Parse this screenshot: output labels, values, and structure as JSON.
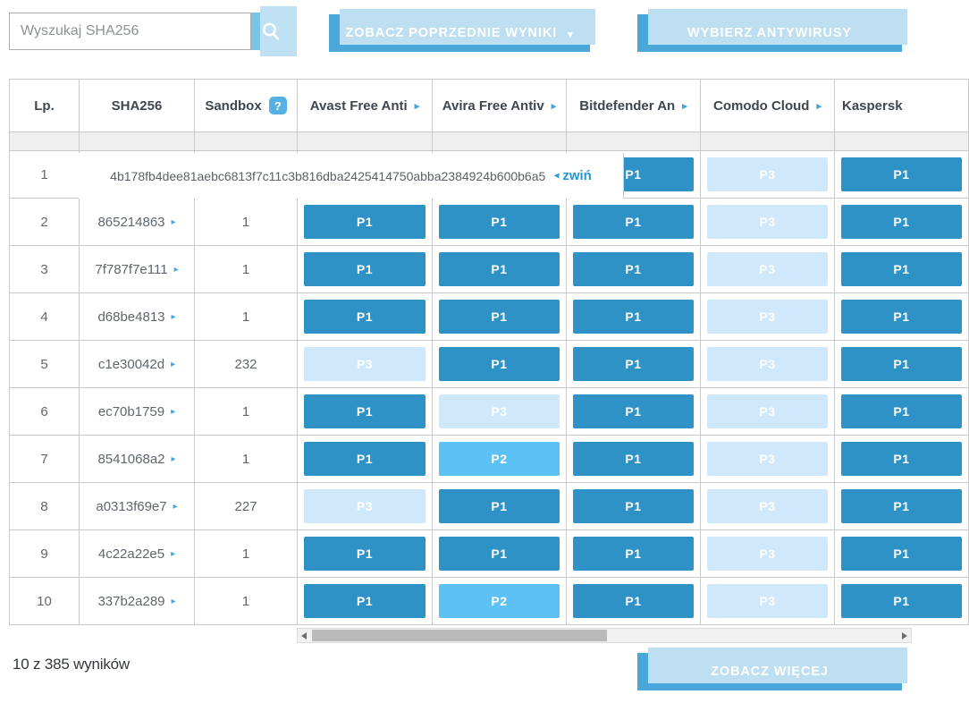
{
  "search": {
    "placeholder": "Wyszukaj SHA256"
  },
  "toolbar": {
    "previous_results": {
      "label": "ZOBACZ POPRZEDNIE WYNIKI",
      "caret": "▾"
    },
    "choose_antivirus": {
      "label": "WYBIERZ ANTYWIRUSY"
    }
  },
  "table": {
    "expand_glyph": "▸",
    "collapse_glyph": "◂",
    "help_glyph": "?",
    "columns": [
      {
        "label": "Lp.",
        "arrow": false
      },
      {
        "label": "SHA256",
        "arrow": false
      },
      {
        "label": "Sandbox",
        "arrow": false,
        "help": true
      },
      {
        "label": "Avast Free Anti",
        "arrow": true
      },
      {
        "label": "Avira Free Antiv",
        "arrow": true
      },
      {
        "label": "Bitdefender An",
        "arrow": true
      },
      {
        "label": "Comodo Cloud",
        "arrow": true
      },
      {
        "label": "Kaspersk",
        "arrow": false,
        "clipped": true
      }
    ],
    "rows": [
      {
        "lp": "1",
        "sha256": "4b178fb4dee81aebc6813f7c11c3b816dba2425414750abba2384924b600b6a5",
        "expanded": true,
        "collapse_label": "zwiń",
        "sandbox": "",
        "results": [
          "",
          "",
          "P1",
          "P3",
          "P1"
        ]
      },
      {
        "lp": "2",
        "sha256": "865214863",
        "sandbox": "1",
        "results": [
          "P1",
          "P1",
          "P1",
          "P3",
          "P1"
        ]
      },
      {
        "lp": "3",
        "sha256": "7f787f7e111",
        "sandbox": "1",
        "results": [
          "P1",
          "P1",
          "P1",
          "P3",
          "P1"
        ]
      },
      {
        "lp": "4",
        "sha256": "d68be4813",
        "sandbox": "1",
        "results": [
          "P1",
          "P1",
          "P1",
          "P3",
          "P1"
        ]
      },
      {
        "lp": "5",
        "sha256": "c1e30042d",
        "sandbox": "232",
        "results": [
          "P3",
          "P1",
          "P1",
          "P3",
          "P1"
        ]
      },
      {
        "lp": "6",
        "sha256": "ec70b1759",
        "sandbox": "1",
        "results": [
          "P1",
          "P3",
          "P1",
          "P3",
          "P1"
        ]
      },
      {
        "lp": "7",
        "sha256": "8541068a2",
        "sandbox": "1",
        "results": [
          "P1",
          "P2",
          "P1",
          "P3",
          "P1"
        ]
      },
      {
        "lp": "8",
        "sha256": "a0313f69e7",
        "sandbox": "227",
        "results": [
          "P3",
          "P1",
          "P1",
          "P3",
          "P1"
        ]
      },
      {
        "lp": "9",
        "sha256": "4c22a22e5",
        "sandbox": "1",
        "results": [
          "P1",
          "P1",
          "P1",
          "P3",
          "P1"
        ]
      },
      {
        "lp": "10",
        "sha256": "337b2a289",
        "sandbox": "1",
        "results": [
          "P1",
          "P2",
          "P1",
          "P3",
          "P1"
        ]
      }
    ]
  },
  "footer": {
    "results_count": "10 z 385 wyników",
    "more_label": "ZOBACZ WIĘCEJ"
  },
  "colors": {
    "accent_button": "#4aa7d8",
    "search_button": "#7cc3e8",
    "p1": "#2e92c6",
    "p2": "#5ec1f5",
    "p3": "#cfe8fb",
    "link": "#2496d6",
    "header_text": "#3f464d",
    "cell_text": "#5f666c",
    "grid_border": "#c9c9c9"
  }
}
